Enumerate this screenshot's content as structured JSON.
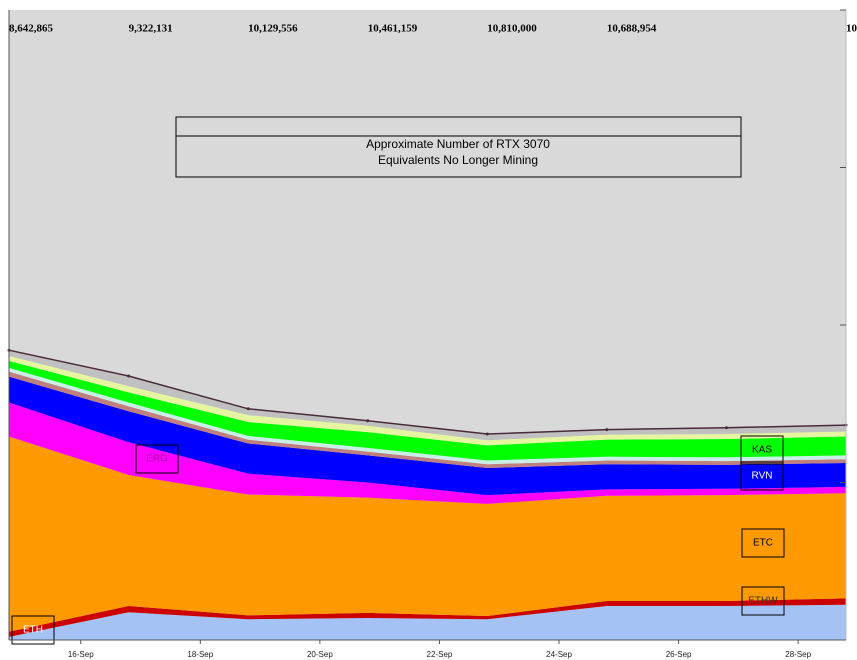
{
  "chart_data": {
    "type": "stacked_area",
    "title_lines": [
      "Approximate Number of RTX 3070",
      "Equivalents No Longer Mining"
    ],
    "x": [
      14.8,
      16.8,
      18.8,
      20.8,
      22.8,
      24.8,
      26.8,
      28.8
    ],
    "xlim": [
      14.8,
      28.8
    ],
    "xticks": [
      {
        "value": 16,
        "label": "16-Sep"
      },
      {
        "value": 18,
        "label": "18-Sep"
      },
      {
        "value": 20,
        "label": "20-Sep"
      },
      {
        "value": 22,
        "label": "22-Sep"
      },
      {
        "value": 24,
        "label": "24-Sep"
      },
      {
        "value": 26,
        "label": "26-Sep"
      },
      {
        "value": 28,
        "label": "28-Sep"
      }
    ],
    "ylim": [
      0,
      100
    ],
    "yticks": [
      0,
      25,
      50,
      75,
      100
    ],
    "top_labels": [
      "8,642,865",
      "9,322,131",
      "10,129,556",
      "10,461,159",
      "10,810,000",
      "10,688,954",
      null,
      "10"
    ],
    "background_color": "#d9d9d9",
    "series": [
      {
        "name": "ETH",
        "color": "#a4c2f4",
        "values": [
          0.5,
          4.4,
          3.3,
          3.5,
          3.3,
          5.4,
          5.4,
          5.6
        ]
      },
      {
        "name": "ETHW",
        "color": "#cc0000",
        "values": [
          0.8,
          1.0,
          0.6,
          0.8,
          0.5,
          0.8,
          0.8,
          1.0
        ]
      },
      {
        "name": "ETC",
        "color": "#ff9900",
        "values": [
          31.0,
          20.8,
          19.2,
          18.3,
          17.8,
          16.7,
          16.8,
          16.7
        ]
      },
      {
        "name": "ERG",
        "color": "#ff00ff",
        "values": [
          5.4,
          5.2,
          3.3,
          2.4,
          1.4,
          1.0,
          1.0,
          1.0
        ]
      },
      {
        "name": "RVN",
        "color": "#0000ff",
        "values": [
          4.1,
          4.9,
          4.8,
          4.3,
          4.3,
          4.0,
          3.8,
          3.8
        ]
      },
      {
        "color": "#c08080",
        "values": [
          0.8,
          0.8,
          0.6,
          0.6,
          0.6,
          0.6,
          0.6,
          0.6
        ]
      },
      {
        "color": "#c9f0e8",
        "values": [
          0.6,
          0.6,
          0.6,
          0.6,
          0.6,
          0.6,
          0.6,
          0.6
        ]
      },
      {
        "name": "KAS",
        "color": "#00ff00",
        "values": [
          1.1,
          1.6,
          2.2,
          2.5,
          2.4,
          2.7,
          2.9,
          3.0
        ]
      },
      {
        "color": "#e6f5a0",
        "values": [
          0.8,
          1.0,
          1.1,
          1.0,
          0.8,
          0.8,
          0.8,
          0.8
        ]
      },
      {
        "color": "#c0c0c0",
        "values": [
          0.9,
          1.6,
          1.0,
          0.8,
          1.0,
          0.8,
          1.0,
          1.0
        ]
      }
    ]
  }
}
